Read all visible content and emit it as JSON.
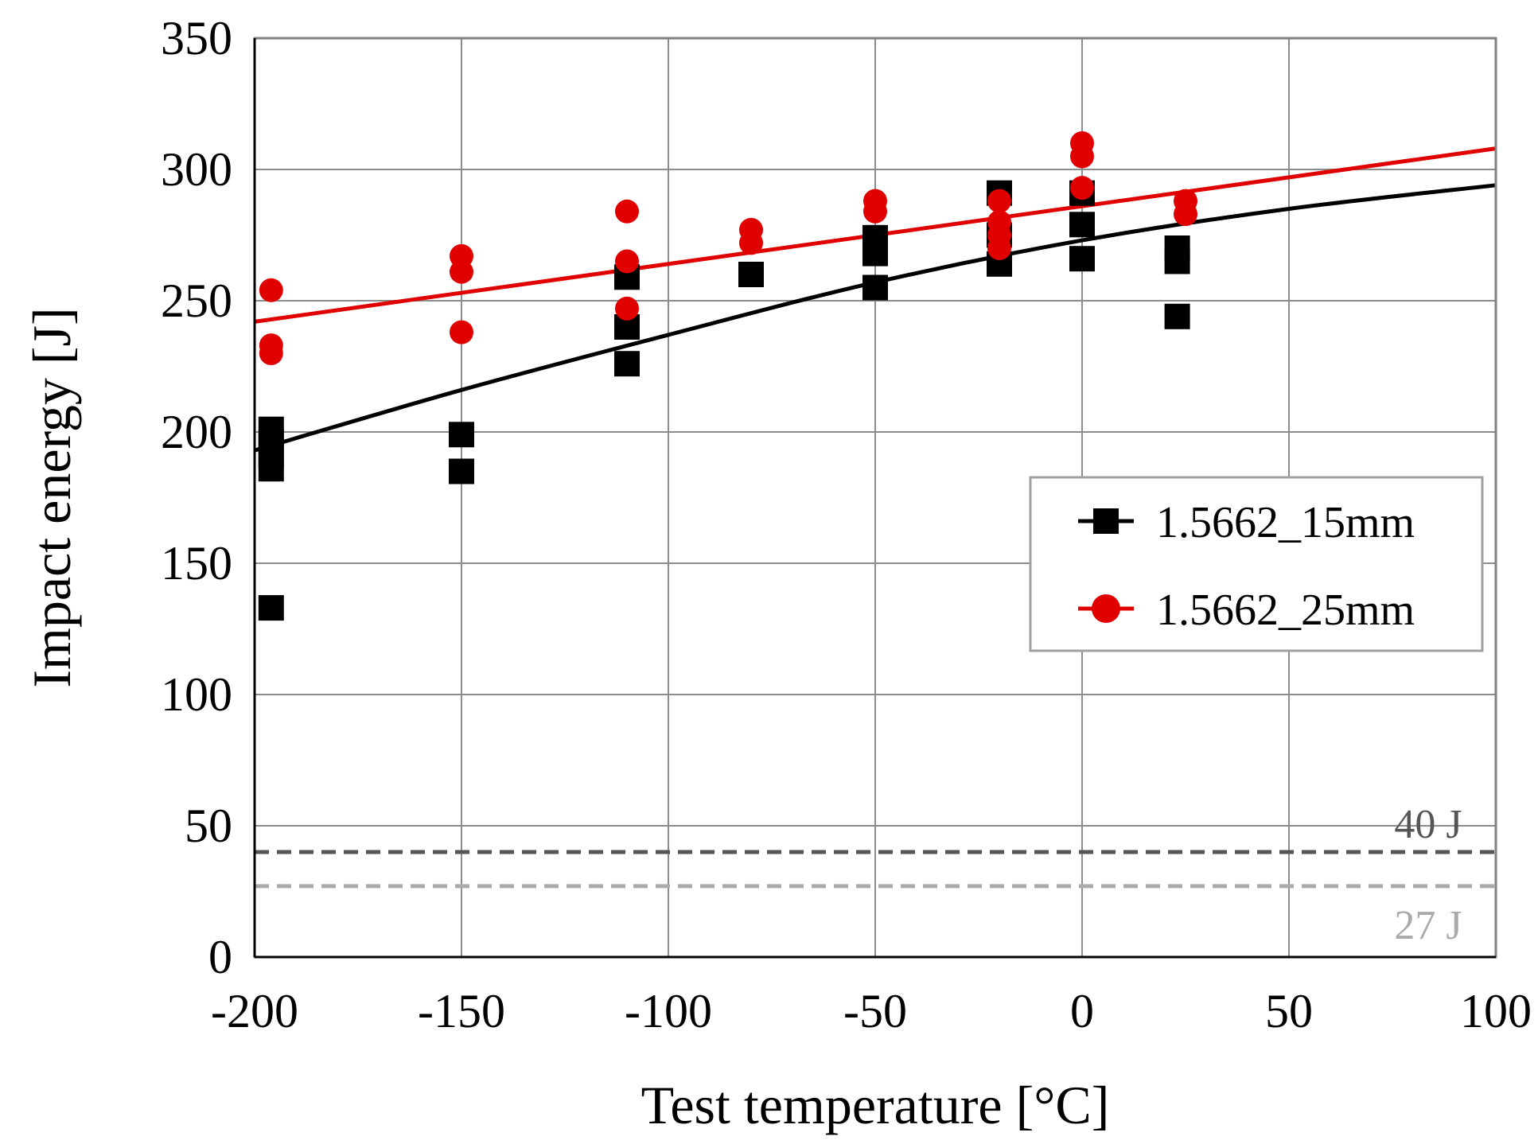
{
  "chart_data": {
    "type": "scatter",
    "xlabel": "Test temperature [°C]",
    "ylabel": "Impact energy [J]",
    "xlim": [
      -200,
      100
    ],
    "ylim": [
      0,
      350
    ],
    "xticks": [
      -200,
      -150,
      -100,
      -50,
      0,
      50,
      100
    ],
    "yticks": [
      0,
      50,
      100,
      150,
      200,
      250,
      300,
      350
    ],
    "xtick_labels": [
      "-200",
      "-150",
      "-100",
      "-50",
      "0",
      "50",
      "100"
    ],
    "ytick_labels": [
      "0",
      "50",
      "100",
      "150",
      "200",
      "250",
      "300",
      "350"
    ],
    "grid": true,
    "legend_position": "right-middle",
    "series": [
      {
        "name": "1.5662_15mm",
        "color": "#000000",
        "marker": "square",
        "points": [
          {
            "x": -196,
            "y": 201
          },
          {
            "x": -196,
            "y": 196
          },
          {
            "x": -196,
            "y": 191
          },
          {
            "x": -196,
            "y": 186
          },
          {
            "x": -196,
            "y": 133
          },
          {
            "x": -150,
            "y": 199
          },
          {
            "x": -150,
            "y": 185
          },
          {
            "x": -110,
            "y": 259
          },
          {
            "x": -110,
            "y": 240
          },
          {
            "x": -110,
            "y": 226
          },
          {
            "x": -80,
            "y": 260
          },
          {
            "x": -50,
            "y": 274
          },
          {
            "x": -50,
            "y": 268
          },
          {
            "x": -50,
            "y": 255
          },
          {
            "x": -20,
            "y": 291
          },
          {
            "x": -20,
            "y": 275
          },
          {
            "x": -20,
            "y": 264
          },
          {
            "x": 0,
            "y": 291
          },
          {
            "x": 0,
            "y": 279
          },
          {
            "x": 0,
            "y": 266
          },
          {
            "x": 23,
            "y": 270
          },
          {
            "x": 23,
            "y": 265
          },
          {
            "x": 23,
            "y": 244
          }
        ],
        "trend": {
          "type": "curve",
          "x": [
            -200,
            -150,
            -100,
            -50,
            0,
            50,
            100
          ],
          "y": [
            193,
            216,
            237,
            257,
            273,
            285,
            294
          ]
        }
      },
      {
        "name": "1.5662_25mm",
        "color": "#e00000",
        "marker": "circle",
        "points": [
          {
            "x": -196,
            "y": 254
          },
          {
            "x": -196,
            "y": 233
          },
          {
            "x": -196,
            "y": 230
          },
          {
            "x": -150,
            "y": 267
          },
          {
            "x": -150,
            "y": 261
          },
          {
            "x": -150,
            "y": 238
          },
          {
            "x": -110,
            "y": 284
          },
          {
            "x": -110,
            "y": 265
          },
          {
            "x": -110,
            "y": 247
          },
          {
            "x": -80,
            "y": 277
          },
          {
            "x": -80,
            "y": 272
          },
          {
            "x": -50,
            "y": 288
          },
          {
            "x": -50,
            "y": 284
          },
          {
            "x": -20,
            "y": 288
          },
          {
            "x": -20,
            "y": 280
          },
          {
            "x": -20,
            "y": 275
          },
          {
            "x": -20,
            "y": 270
          },
          {
            "x": 0,
            "y": 310
          },
          {
            "x": 0,
            "y": 305
          },
          {
            "x": 0,
            "y": 293
          },
          {
            "x": 25,
            "y": 288
          },
          {
            "x": 25,
            "y": 283
          }
        ],
        "trend": {
          "type": "linear",
          "x": [
            -200,
            100
          ],
          "y": [
            242,
            308
          ]
        }
      }
    ],
    "reference_lines": [
      {
        "value": 40,
        "label": "40 J",
        "color": "#555555",
        "style": "dashed"
      },
      {
        "value": 27,
        "label": "27 J",
        "color": "#aaaaaa",
        "style": "dashed"
      }
    ]
  }
}
